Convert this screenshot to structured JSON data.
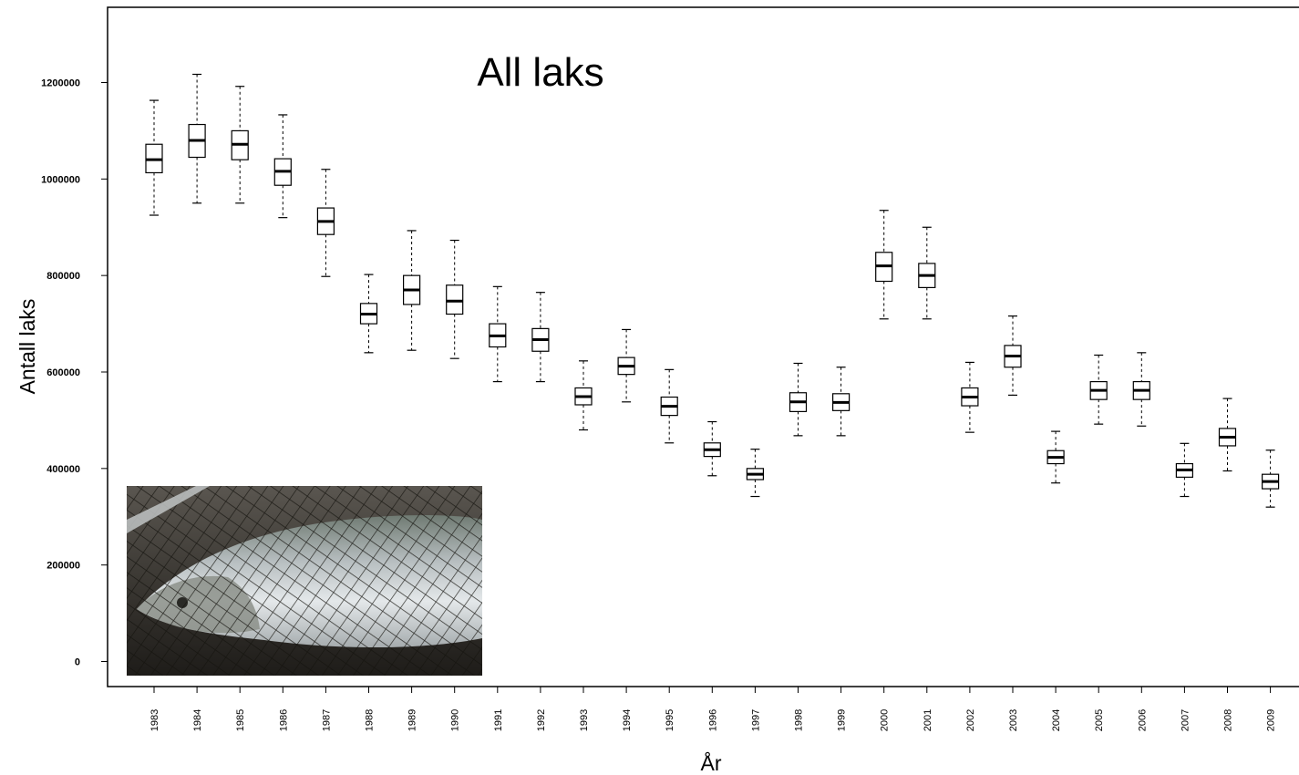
{
  "chart_data": {
    "type": "boxplot",
    "title": "All laks",
    "xlabel": "År",
    "ylabel": "Antall laks",
    "ylim": [
      -50000,
      1350000
    ],
    "yticks": [
      0,
      200000,
      400000,
      600000,
      800000,
      1000000,
      1200000
    ],
    "ytick_labels": [
      "0",
      "200000",
      "400000",
      "600000",
      "800000",
      "1000000",
      "1200000"
    ],
    "grid": false,
    "categories": [
      "1983",
      "1984",
      "1985",
      "1986",
      "1987",
      "1988",
      "1989",
      "1990",
      "1991",
      "1992",
      "1993",
      "1994",
      "1995",
      "1996",
      "1997",
      "1998",
      "1999",
      "2000",
      "2001",
      "2002",
      "2003",
      "2004",
      "2005",
      "2006",
      "2007",
      "2008",
      "2009"
    ],
    "boxes": [
      {
        "min": 925000,
        "q1": 1013000,
        "median": 1040000,
        "q3": 1072000,
        "max": 1163000
      },
      {
        "min": 950000,
        "q1": 1045000,
        "median": 1080000,
        "q3": 1113000,
        "max": 1217000
      },
      {
        "min": 950000,
        "q1": 1040000,
        "median": 1072000,
        "q3": 1100000,
        "max": 1192000
      },
      {
        "min": 920000,
        "q1": 987000,
        "median": 1016000,
        "q3": 1042000,
        "max": 1133000
      },
      {
        "min": 798000,
        "q1": 885000,
        "median": 912000,
        "q3": 940000,
        "max": 1020000
      },
      {
        "min": 640000,
        "q1": 700000,
        "median": 720000,
        "q3": 742000,
        "max": 802000
      },
      {
        "min": 645000,
        "q1": 740000,
        "median": 770000,
        "q3": 800000,
        "max": 893000
      },
      {
        "min": 628000,
        "q1": 720000,
        "median": 747000,
        "q3": 780000,
        "max": 873000
      },
      {
        "min": 580000,
        "q1": 652000,
        "median": 675000,
        "q3": 700000,
        "max": 777000
      },
      {
        "min": 580000,
        "q1": 643000,
        "median": 667000,
        "q3": 690000,
        "max": 765000
      },
      {
        "min": 480000,
        "q1": 532000,
        "median": 549000,
        "q3": 567000,
        "max": 623000
      },
      {
        "min": 538000,
        "q1": 595000,
        "median": 612000,
        "q3": 630000,
        "max": 688000
      },
      {
        "min": 453000,
        "q1": 510000,
        "median": 529000,
        "q3": 548000,
        "max": 605000
      },
      {
        "min": 385000,
        "q1": 425000,
        "median": 439000,
        "q3": 453000,
        "max": 497000
      },
      {
        "min": 342000,
        "q1": 377000,
        "median": 388000,
        "q3": 400000,
        "max": 440000
      },
      {
        "min": 468000,
        "q1": 518000,
        "median": 538000,
        "q3": 557000,
        "max": 618000
      },
      {
        "min": 468000,
        "q1": 520000,
        "median": 537000,
        "q3": 555000,
        "max": 610000
      },
      {
        "min": 710000,
        "q1": 788000,
        "median": 820000,
        "q3": 848000,
        "max": 935000
      },
      {
        "min": 710000,
        "q1": 775000,
        "median": 800000,
        "q3": 825000,
        "max": 900000
      },
      {
        "min": 475000,
        "q1": 530000,
        "median": 548000,
        "q3": 567000,
        "max": 620000
      },
      {
        "min": 552000,
        "q1": 610000,
        "median": 633000,
        "q3": 655000,
        "max": 716000
      },
      {
        "min": 370000,
        "q1": 410000,
        "median": 423000,
        "q3": 437000,
        "max": 477000
      },
      {
        "min": 492000,
        "q1": 543000,
        "median": 562000,
        "q3": 580000,
        "max": 635000
      },
      {
        "min": 488000,
        "q1": 543000,
        "median": 562000,
        "q3": 580000,
        "max": 640000
      },
      {
        "min": 342000,
        "q1": 382000,
        "median": 397000,
        "q3": 410000,
        "max": 452000
      },
      {
        "min": 395000,
        "q1": 447000,
        "median": 465000,
        "q3": 483000,
        "max": 545000
      },
      {
        "min": 320000,
        "q1": 358000,
        "median": 373000,
        "q3": 388000,
        "max": 438000
      }
    ]
  }
}
